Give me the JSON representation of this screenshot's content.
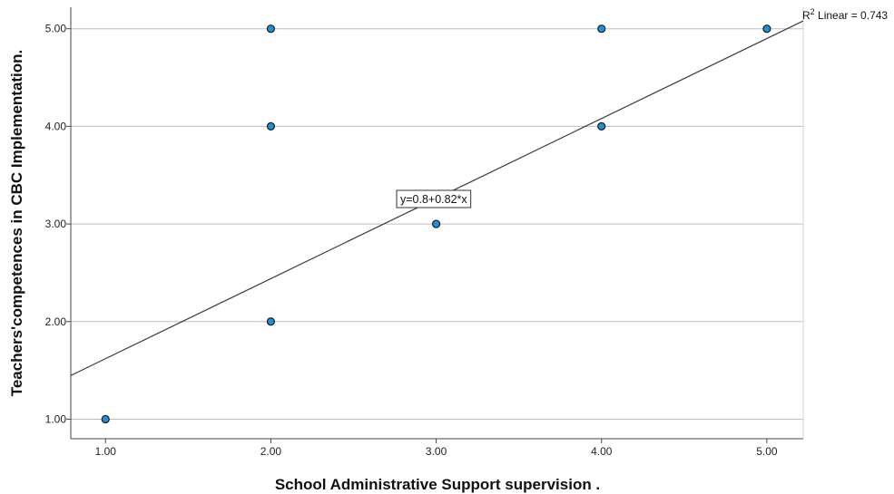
{
  "chart_data": {
    "type": "scatter",
    "xlabel": "School Administrative Support supervision .",
    "ylabel": "Teachers'competences in CBC Implementation.",
    "xlim": [
      0.79,
      5.22
    ],
    "ylim": [
      0.8,
      5.22
    ],
    "x_ticks": [
      1,
      2,
      3,
      4,
      5
    ],
    "x_tick_labels": [
      "1.00",
      "2.00",
      "3.00",
      "4.00",
      "5.00"
    ],
    "y_ticks": [
      1,
      2,
      3,
      4,
      5
    ],
    "y_tick_labels": [
      "1.00",
      "2.00",
      "3.00",
      "4.00",
      "5.00"
    ],
    "grid": "horizontal",
    "points": [
      {
        "x": 1,
        "y": 1
      },
      {
        "x": 2,
        "y": 2
      },
      {
        "x": 2,
        "y": 4
      },
      {
        "x": 2,
        "y": 5
      },
      {
        "x": 3,
        "y": 3
      },
      {
        "x": 4,
        "y": 4
      },
      {
        "x": 4,
        "y": 5
      },
      {
        "x": 5,
        "y": 5
      }
    ],
    "fit_line": {
      "intercept": 0.8,
      "slope": 0.82,
      "x_range": [
        0.79,
        5.22
      ]
    },
    "annotations": {
      "equation": "y=0.8+0.82*x",
      "r2_prefix": "R",
      "r2_superscript": "2",
      "r2_suffix": " Linear = 0.743"
    },
    "colors": {
      "point_fill": "#1e90d8",
      "point_stroke": "#1a1a1a",
      "fit_line": "#3a3a3a",
      "gridline": "#bdbdbd",
      "axis": "#444444"
    }
  }
}
